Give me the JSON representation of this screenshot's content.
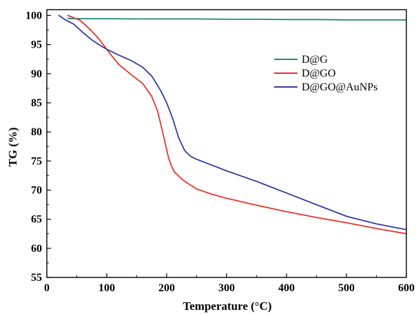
{
  "chart_data": {
    "type": "line",
    "title": "",
    "xlabel": "Temperature (°C)",
    "ylabel": "TG (%)",
    "xlim": [
      0,
      600
    ],
    "ylim": [
      55,
      101
    ],
    "xticks": [
      0,
      100,
      200,
      300,
      400,
      500,
      600
    ],
    "yticks": [
      55,
      60,
      65,
      70,
      75,
      80,
      85,
      90,
      95,
      100
    ],
    "grid": false,
    "legend_position": "top-right",
    "series": [
      {
        "name": "D@G",
        "color": "#1a8a7a",
        "x": [
          35,
          60,
          100,
          150,
          200,
          250,
          300,
          350,
          400,
          450,
          500,
          550,
          600
        ],
        "y": [
          99.5,
          99.45,
          99.45,
          99.4,
          99.4,
          99.4,
          99.35,
          99.35,
          99.3,
          99.3,
          99.25,
          99.25,
          99.25
        ]
      },
      {
        "name": "D@GO",
        "color": "#e8312a",
        "x": [
          35,
          45,
          55,
          65,
          75,
          85,
          95,
          105,
          120,
          140,
          160,
          175,
          185,
          192,
          198,
          203,
          208,
          213,
          220,
          230,
          250,
          275,
          300,
          350,
          400,
          450,
          500,
          550,
          600
        ],
        "y": [
          100,
          99.6,
          99.2,
          98.3,
          97.3,
          96.2,
          94.9,
          93.5,
          91.6,
          89.9,
          88.3,
          86.1,
          83.5,
          80.5,
          77.8,
          75.6,
          74.1,
          73.1,
          72.4,
          71.5,
          70.2,
          69.3,
          68.6,
          67.4,
          66.3,
          65.3,
          64.4,
          63.4,
          62.5
        ]
      },
      {
        "name": "D@GO@AuNPs",
        "color": "#2e3b9e",
        "x": [
          20,
          30,
          45,
          60,
          75,
          90,
          100,
          120,
          140,
          160,
          175,
          190,
          200,
          210,
          220,
          230,
          240,
          250,
          275,
          300,
          350,
          400,
          450,
          500,
          550,
          600
        ],
        "y": [
          100,
          99.3,
          98.5,
          97.1,
          95.8,
          94.8,
          94.2,
          93.2,
          92.3,
          91.1,
          89.6,
          87.1,
          85,
          82.3,
          79,
          76.8,
          75.8,
          75.3,
          74.3,
          73.3,
          71.5,
          69.5,
          67.5,
          65.5,
          64.2,
          63.2
        ]
      }
    ]
  }
}
